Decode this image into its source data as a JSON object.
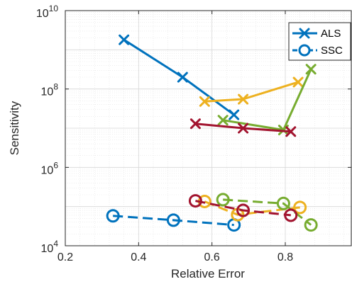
{
  "chart_data": {
    "type": "line",
    "xlabel": "Relative Error",
    "ylabel": "Sensitivity",
    "x_ticks": [
      "0.2",
      "0.4",
      "0.6",
      "0.8"
    ],
    "xlim": [
      0.2,
      0.98
    ],
    "ylim": [
      10000,
      10000000000
    ],
    "y_scale": "log",
    "y_ticks": [
      {
        "base": "10",
        "exp": "4"
      },
      {
        "base": "10",
        "exp": "6"
      },
      {
        "base": "10",
        "exp": "8"
      },
      {
        "base": "10",
        "exp": "10"
      }
    ],
    "grid": true,
    "legend_position": "top-right",
    "legend": [
      {
        "label": "ALS",
        "marker": "x",
        "dash": "solid",
        "color": "#0072BD"
      },
      {
        "label": "SSC",
        "marker": "o",
        "dash": "dashed",
        "color": "#0072BD"
      }
    ],
    "series": [
      {
        "group": "ALS",
        "color": "#0072BD",
        "marker": "x",
        "dash": "solid",
        "x": [
          0.36,
          0.52,
          0.66
        ],
        "y": [
          1800000000,
          200000000,
          22000000
        ]
      },
      {
        "group": "ALS",
        "color": "#EDB120",
        "marker": "x",
        "dash": "solid",
        "x": [
          0.58,
          0.685,
          0.835
        ],
        "y": [
          48000000,
          55000000,
          150000000
        ]
      },
      {
        "group": "ALS",
        "color": "#77AC30",
        "marker": "x",
        "dash": "solid",
        "x": [
          0.63,
          0.795,
          0.87
        ],
        "y": [
          16000000,
          9000000,
          320000000
        ]
      },
      {
        "group": "ALS",
        "color": "#A2142F",
        "marker": "x",
        "dash": "solid",
        "x": [
          0.555,
          0.685,
          0.815
        ],
        "y": [
          13000000,
          10000000,
          8200000
        ]
      },
      {
        "group": "SSC",
        "color": "#0072BD",
        "marker": "o",
        "dash": "dashed",
        "x": [
          0.33,
          0.495,
          0.66
        ],
        "y": [
          58000,
          45000,
          34000
        ]
      },
      {
        "group": "SSC",
        "color": "#EDB120",
        "marker": "o",
        "dash": "dashed",
        "x": [
          0.58,
          0.67,
          0.84
        ],
        "y": [
          135000,
          62000,
          95000
        ]
      },
      {
        "group": "SSC",
        "color": "#77AC30",
        "marker": "o",
        "dash": "dashed",
        "x": [
          0.63,
          0.795,
          0.87
        ],
        "y": [
          150000,
          120000,
          34000
        ]
      },
      {
        "group": "SSC",
        "color": "#A2142F",
        "marker": "o",
        "dash": "dashed",
        "x": [
          0.555,
          0.685,
          0.815
        ],
        "y": [
          140000,
          80000,
          60000
        ]
      }
    ]
  }
}
